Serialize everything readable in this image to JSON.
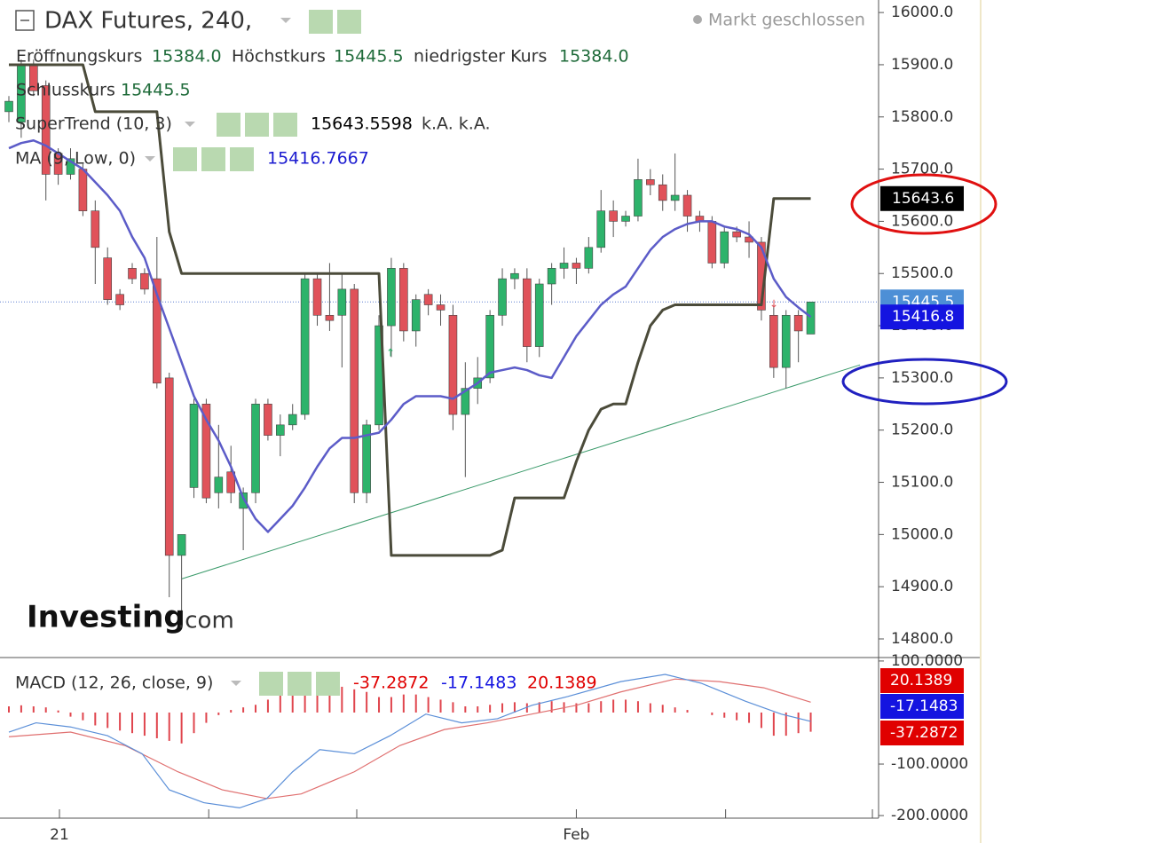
{
  "chart_data": {
    "type": "candlestick",
    "title": "DAX Futures, 240,",
    "status": "Markt geschlossen",
    "ohlc_legend": [
      {
        "name": "Eröffnungskurs",
        "label": "15384.0"
      },
      {
        "name": "Höchstkurs",
        "label": "15445.5"
      },
      {
        "name": "niedrigster Kurs",
        "label": "15384.0"
      },
      {
        "name": "Schlusskurs",
        "label": "15445.5"
      }
    ],
    "watermark": [
      "Investing",
      ".com"
    ],
    "xlim": [
      -0.72,
      70.5
    ],
    "xticks": [
      {
        "value": 4.1,
        "label": "21"
      },
      {
        "value": 46,
        "label": "Feb"
      }
    ],
    "minor_xticks": [
      16.2,
      28.2,
      58.1,
      70
    ],
    "ylim": [
      14766,
      16024
    ],
    "yticks": [
      {
        "value": 14800,
        "label": "14800.0"
      },
      {
        "value": 14900,
        "label": "14900.0"
      },
      {
        "value": 15000,
        "label": "15000.0"
      },
      {
        "value": 15100,
        "label": "15100.0"
      },
      {
        "value": 15200,
        "label": "15200.0"
      },
      {
        "value": 15300,
        "label": "15300.0"
      },
      {
        "value": 15400,
        "label": "15400.0"
      },
      {
        "value": 15500,
        "label": "15500.0"
      },
      {
        "value": 15600,
        "label": "15600.0"
      },
      {
        "value": 15700,
        "label": "15700.0"
      },
      {
        "value": 15800,
        "label": "15800.0"
      },
      {
        "value": 15900,
        "label": "15900.0"
      },
      {
        "value": 16000,
        "label": "16000.0"
      }
    ],
    "up_color": "#2db36b",
    "down_color": "#e0525a",
    "open": [
      15810,
      15790,
      15900,
      15860,
      15730,
      15690,
      15700,
      15620,
      15530,
      15460,
      15510,
      15500,
      15490,
      15300,
      14960,
      15090,
      15250,
      15080,
      15120,
      15050,
      15080,
      15250,
      15190,
      15210,
      15230,
      15490,
      15420,
      15420,
      15470,
      15080,
      15210,
      15400,
      15510,
      15390,
      15460,
      15440,
      15420,
      15230,
      15280,
      15300,
      15420,
      15490,
      15490,
      15360,
      15480,
      15510,
      15520,
      15510,
      15550,
      15620,
      15600,
      15610,
      15680,
      15670,
      15640,
      15650,
      15610,
      15600,
      15520,
      15580,
      15570,
      15560,
      15420,
      15320,
      15420,
      15384
    ],
    "high": [
      15840,
      15910,
      15910,
      15870,
      15740,
      15740,
      15710,
      15640,
      15550,
      15470,
      15520,
      15510,
      15570,
      15310,
      15000,
      15260,
      15260,
      15210,
      15170,
      15090,
      15260,
      15260,
      15230,
      15250,
      15500,
      15500,
      15520,
      15500,
      15480,
      15220,
      15420,
      15530,
      15520,
      15460,
      15470,
      15460,
      15440,
      15330,
      15340,
      15430,
      15510,
      15510,
      15510,
      15490,
      15520,
      15550,
      15530,
      15570,
      15660,
      15640,
      15620,
      15720,
      15700,
      15690,
      15730,
      15660,
      15620,
      15610,
      15590,
      15590,
      15600,
      15570,
      15440,
      15430,
      15430,
      15445.5
    ],
    "low": [
      15790,
      15760,
      15840,
      15640,
      15670,
      15680,
      15610,
      15480,
      15440,
      15430,
      15480,
      15460,
      15280,
      14880,
      14830,
      15070,
      15060,
      15050,
      15060,
      14970,
      15060,
      15180,
      15150,
      15200,
      15220,
      15400,
      15390,
      15320,
      15060,
      15060,
      15200,
      15340,
      15370,
      15360,
      15420,
      15400,
      15200,
      15110,
      15250,
      15290,
      15400,
      15470,
      15330,
      15340,
      15440,
      15490,
      15480,
      15500,
      15540,
      15570,
      15590,
      15600,
      15650,
      15620,
      15620,
      15580,
      15580,
      15510,
      15510,
      15560,
      15530,
      15410,
      15300,
      15280,
      15330,
      15384
    ],
    "close": [
      15830,
      15900,
      15850,
      15690,
      15690,
      15720,
      15620,
      15550,
      15450,
      15440,
      15490,
      15470,
      15290,
      14960,
      15000,
      15250,
      15070,
      15110,
      15080,
      15080,
      15250,
      15190,
      15210,
      15230,
      15490,
      15420,
      15410,
      15470,
      15080,
      15210,
      15400,
      15510,
      15390,
      15450,
      15440,
      15430,
      15230,
      15280,
      15300,
      15420,
      15490,
      15500,
      15360,
      15480,
      15510,
      15520,
      15510,
      15550,
      15620,
      15600,
      15610,
      15680,
      15670,
      15640,
      15650,
      15610,
      15600,
      15520,
      15580,
      15570,
      15560,
      15430,
      15320,
      15420,
      15390,
      15445.5
    ],
    "series": [
      {
        "name": "SuperTrend (10, 3)",
        "extra": "k.A.  k.A.",
        "color": "#4b4b3a",
        "values": [
          15900,
          15900,
          15900,
          15900,
          15900,
          15900,
          15900,
          15810,
          15810,
          15810,
          15810,
          15810,
          15810,
          15580,
          15500,
          15500,
          15500,
          15500,
          15500,
          15500,
          15500,
          15500,
          15500,
          15500,
          15500,
          15500,
          15500,
          15500,
          15500,
          15500,
          15500,
          14960,
          14960,
          14960,
          14960,
          14960,
          14960,
          14960,
          14960,
          14960,
          14970,
          15070,
          15070,
          15070,
          15070,
          15070,
          15140,
          15200,
          15240,
          15250,
          15250,
          15330,
          15400,
          15430,
          15440,
          15440,
          15440,
          15440,
          15440,
          15440,
          15440,
          15440,
          15643.5598,
          15643.5598,
          15643.5598,
          15643.5598
        ]
      },
      {
        "name": "MA (9, Low, 0)",
        "color": "#5c5cc8",
        "legend_color": "#1a1ad0",
        "values": [
          15740,
          15750,
          15755,
          15745,
          15730,
          15715,
          15700,
          15675,
          15650,
          15620,
          15570,
          15530,
          15460,
          15395,
          15330,
          15265,
          15220,
          15180,
          15130,
          15070,
          15030,
          15005,
          15030,
          15055,
          15090,
          15130,
          15165,
          15185,
          15185,
          15190,
          15195,
          15220,
          15250,
          15265,
          15265,
          15265,
          15260,
          15275,
          15290,
          15310,
          15315,
          15320,
          15315,
          15305,
          15300,
          15340,
          15380,
          15410,
          15440,
          15460,
          15475,
          15510,
          15545,
          15570,
          15585,
          15595,
          15600,
          15600,
          15590,
          15585,
          15575,
          15550,
          15490,
          15455,
          15435,
          15416.7667
        ]
      }
    ],
    "trendline": {
      "x": [
        14,
        69
      ],
      "values": [
        14915,
        15325
      ],
      "color": "#3a9a6a"
    },
    "last_price_line": 15445.5,
    "price_badges": [
      {
        "value": 15643.6,
        "label": "15643.6",
        "color": "#000000"
      },
      {
        "value": 15445.5,
        "label": "15445.5",
        "color": "#4d8fd6"
      },
      {
        "value": 15416.8,
        "label": "15416.8",
        "color": "#1414e0"
      }
    ],
    "macd": {
      "name": "MACD (12, 26, close, 9)",
      "ylim": [
        -205,
        105
      ],
      "yticks": [
        {
          "value": 100,
          "label": "100.0000"
        },
        {
          "value": -100,
          "label": "-100.0000"
        },
        {
          "value": -200,
          "label": "-200.0000"
        }
      ],
      "histogram": {
        "color": "#e0454d",
        "values": [
          12,
          14,
          12,
          10,
          4,
          -8,
          -15,
          -25,
          -30,
          -35,
          -40,
          -45,
          -50,
          -55,
          -60,
          -40,
          -20,
          -5,
          5,
          10,
          15,
          25,
          35,
          45,
          55,
          58,
          55,
          50,
          45,
          40,
          30,
          30,
          35,
          35,
          30,
          25,
          20,
          12,
          12,
          15,
          18,
          20,
          18,
          20,
          22,
          20,
          18,
          18,
          22,
          25,
          25,
          22,
          18,
          15,
          10,
          5,
          0,
          -5,
          -10,
          -15,
          -20,
          -30,
          -45,
          -45,
          -40,
          -37.2872
        ]
      },
      "macd_line": {
        "color": "#5b8fd8",
        "legend_color": "#1414e0",
        "x": [
          0,
          2.2,
          5,
          8,
          10.8,
          13,
          15.8,
          18.7,
          20.9,
          23,
          25.2,
          28,
          30.9,
          33.8,
          36.7,
          39.6,
          42.4,
          45.3,
          49.6,
          53.2,
          56.1,
          59.7,
          62.6,
          65
        ],
        "values": [
          -38,
          -20,
          -28,
          -45,
          -80,
          -150,
          -175,
          -185,
          -167,
          -115,
          -72,
          -80,
          -45,
          -3,
          -20,
          -12,
          14,
          31,
          60,
          74,
          57,
          22,
          -3,
          -17.1483
        ]
      },
      "signal_line": {
        "color": "#e07070",
        "legend_color": "#e00000",
        "x": [
          0,
          5,
          9.4,
          13.7,
          17.3,
          20.9,
          23.7,
          28,
          31.7,
          35.3,
          38.8,
          42.4,
          46,
          49.6,
          54,
          57.6,
          61.2,
          65
        ],
        "values": [
          -47,
          -38,
          -64,
          -115,
          -150,
          -167,
          -158,
          -115,
          -64,
          -33,
          -20,
          -3,
          14,
          40,
          65,
          60,
          48,
          20.1389
        ]
      }
    }
  }
}
